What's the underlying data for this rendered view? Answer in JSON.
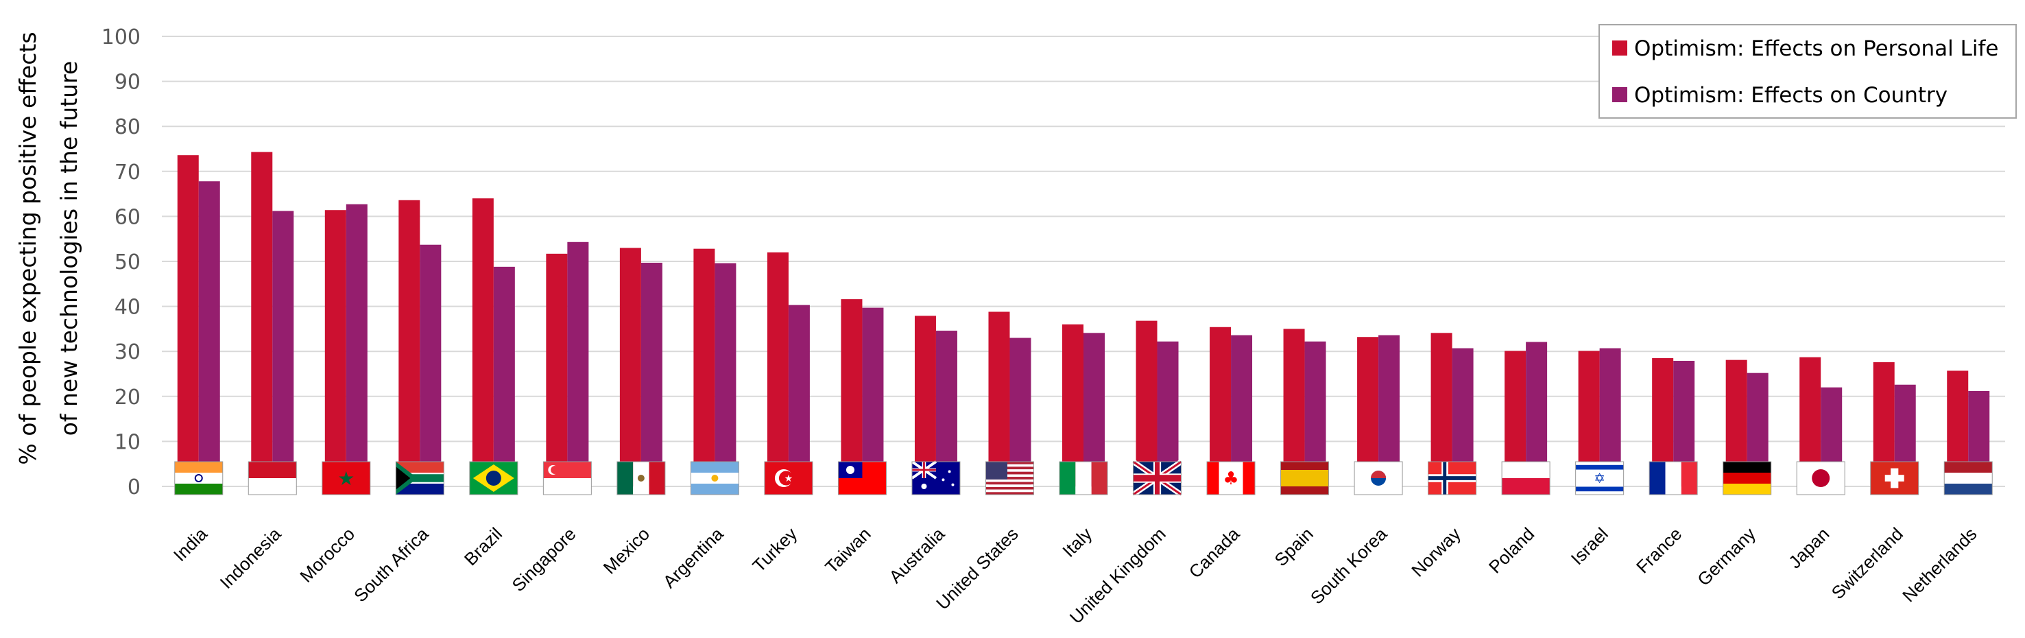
{
  "chart_data": {
    "type": "bar",
    "title": "",
    "xlabel": "",
    "ylabel": [
      "% of people expecting positive effects",
      "of new technologies in the future"
    ],
    "ylim": [
      0,
      100
    ],
    "yticks": [
      0,
      10,
      20,
      30,
      40,
      50,
      60,
      70,
      80,
      90,
      100
    ],
    "grid": true,
    "legend_position": "top-right",
    "categories": [
      "India",
      "Indonesia",
      "Morocco",
      "South Africa",
      "Brazil",
      "Singapore",
      "Mexico",
      "Argentina",
      "Turkey",
      "Taiwan",
      "Australia",
      "United States",
      "Italy",
      "United Kingdom",
      "Canada",
      "Spain",
      "South Korea",
      "Norway",
      "Poland",
      "Israel",
      "France",
      "Germany",
      "Japan",
      "Switzerland",
      "Netherlands"
    ],
    "category_icons": [
      "flag-india",
      "flag-indonesia",
      "flag-morocco",
      "flag-south-africa",
      "flag-brazil",
      "flag-singapore",
      "flag-mexico",
      "flag-argentina",
      "flag-turkey",
      "flag-taiwan",
      "flag-australia",
      "flag-united-states",
      "flag-italy",
      "flag-united-kingdom",
      "flag-canada",
      "flag-spain",
      "flag-south-korea",
      "flag-norway",
      "flag-poland",
      "flag-israel",
      "flag-france",
      "flag-germany",
      "flag-japan",
      "flag-switzerland",
      "flag-netherlands"
    ],
    "series": [
      {
        "name": "Optimism: Effects on Personal Life",
        "color": "#CC1030",
        "values": [
          73.6,
          74.3,
          61.4,
          63.6,
          64.0,
          51.7,
          53.0,
          52.8,
          52.0,
          41.6,
          37.9,
          38.8,
          36.0,
          36.8,
          35.4,
          35.0,
          33.2,
          34.1,
          30.1,
          30.1,
          28.5,
          28.1,
          28.7,
          27.6,
          25.7
        ]
      },
      {
        "name": "Optimism: Effects on Country",
        "color": "#951E6E",
        "values": [
          67.8,
          61.2,
          62.7,
          53.7,
          48.8,
          54.3,
          49.7,
          49.6,
          40.3,
          39.7,
          34.6,
          33.0,
          34.1,
          32.2,
          33.6,
          32.2,
          33.6,
          30.7,
          32.1,
          30.7,
          27.9,
          25.2,
          22.0,
          22.6,
          21.2
        ]
      }
    ]
  }
}
